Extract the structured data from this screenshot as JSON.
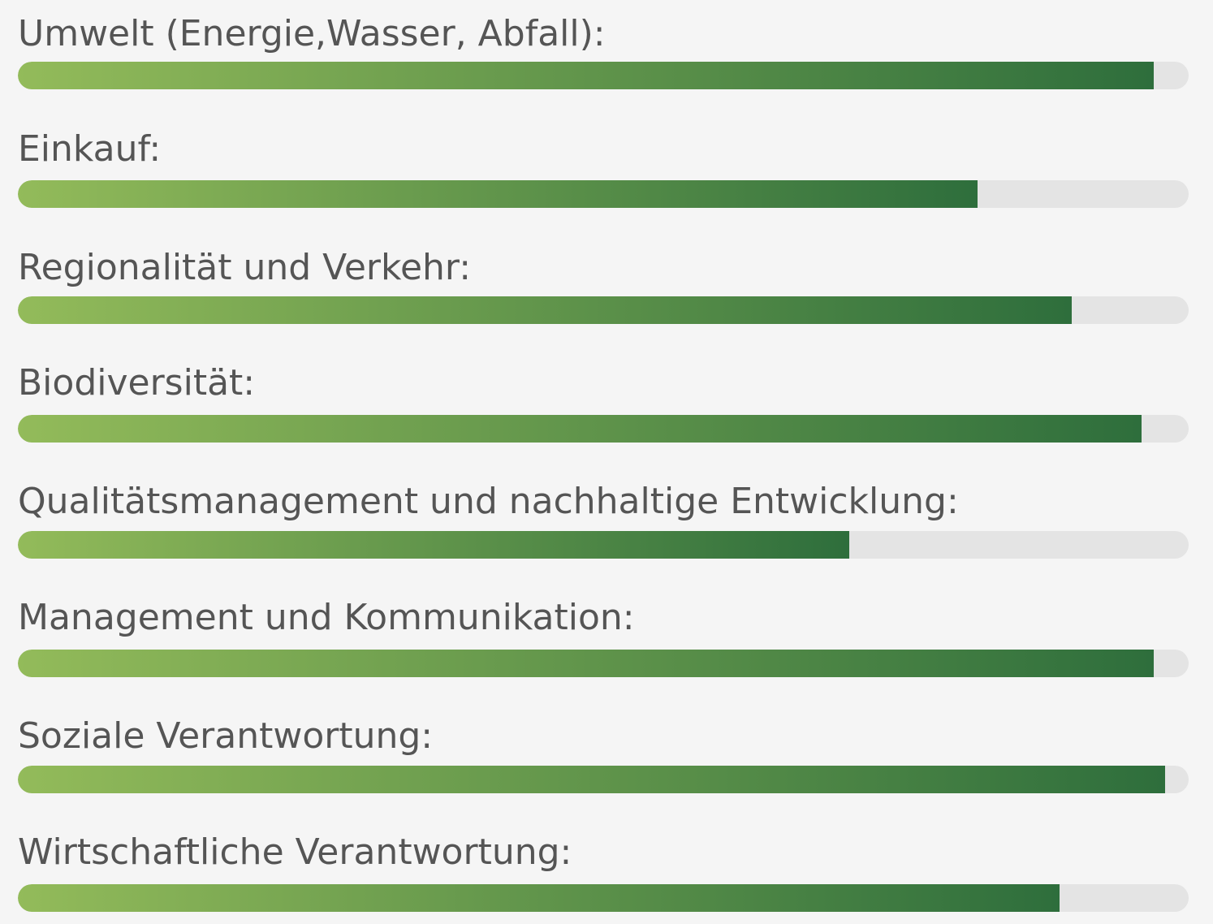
{
  "colors": {
    "background": "#f5f5f5",
    "label": "#555555",
    "track": "#e4e4e4",
    "fill_start": "#93bb5a",
    "fill_end": "#2e6e3c"
  },
  "items": [
    {
      "label": "Umwelt (Energie,Wasser, Abfall):",
      "value": 0.97
    },
    {
      "label": "Einkauf:",
      "value": 0.82
    },
    {
      "label": "Regionalität und Verkehr:",
      "value": 0.9
    },
    {
      "label": "Biodiversität:",
      "value": 0.96
    },
    {
      "label": "Qualitätsmanagement und nachhaltige Entwicklung:",
      "value": 0.71
    },
    {
      "label": "Management und Kommunikation:",
      "value": 0.97
    },
    {
      "label": "Soziale Verantwortung:",
      "value": 0.98
    },
    {
      "label": "Wirtschaftliche Verantwortung:",
      "value": 0.89
    }
  ]
}
